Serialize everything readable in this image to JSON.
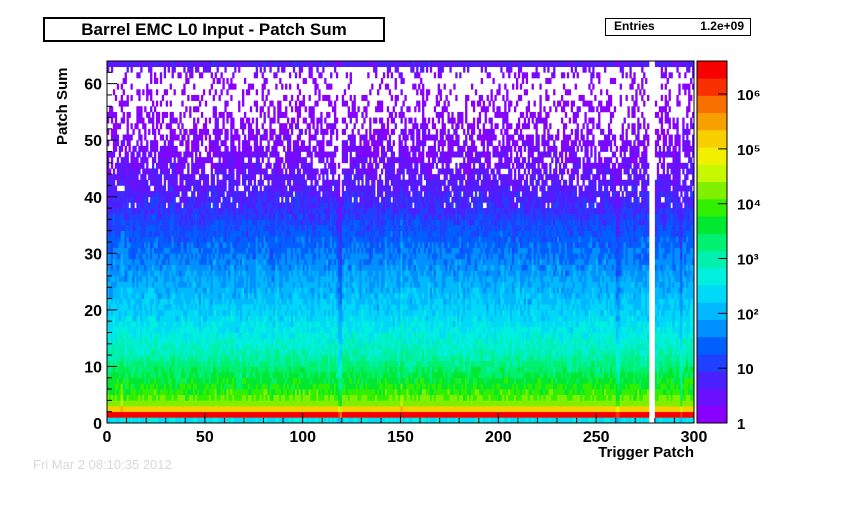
{
  "title": "Barrel EMC L0 Input - Patch Sum",
  "stats": {
    "label": "Entries",
    "value": "1.2e+09"
  },
  "footer_text": "Fri Mar  2 08:10:35 2012",
  "chart_data": {
    "type": "heatmap",
    "title": "Barrel EMC L0 Input - Patch Sum",
    "xlabel": "Trigger Patch",
    "ylabel": "Patch Sum",
    "xlim": [
      0,
      300
    ],
    "ylim": [
      0,
      64
    ],
    "x_ticks": [
      0,
      50,
      100,
      150,
      200,
      250,
      300
    ],
    "y_ticks": [
      0,
      10,
      20,
      30,
      40,
      50,
      60
    ],
    "z_scale": "log",
    "zlim": [
      1,
      4000000
    ],
    "colorbar_ticks": [
      {
        "value": 1,
        "label": "1"
      },
      {
        "value": 10,
        "label": "10"
      },
      {
        "value": 100,
        "label": "10²"
      },
      {
        "value": 1000,
        "label": "10³"
      },
      {
        "value": 10000,
        "label": "10⁴"
      },
      {
        "value": 100000,
        "label": "10⁵"
      },
      {
        "value": 1000000,
        "label": "10⁶"
      }
    ],
    "palette": [
      "#8a00ff",
      "#6a10ff",
      "#4a20ff",
      "#2040ff",
      "#0060ff",
      "#0090ff",
      "#00b8ff",
      "#00d8f8",
      "#00f0e0",
      "#00f0b0",
      "#00f070",
      "#00e830",
      "#30f000",
      "#80f000",
      "#c8f800",
      "#f0f000",
      "#f8d000",
      "#f8a000",
      "#f87000",
      "#f83000",
      "#f80000"
    ],
    "profile_by_patch_sum": [
      {
        "y": 0,
        "count": 300
      },
      {
        "y": 1,
        "count": 3000000
      },
      {
        "y": 2,
        "count": 150000
      },
      {
        "y": 3,
        "count": 20000
      },
      {
        "y": 5,
        "count": 8000
      },
      {
        "y": 8,
        "count": 3000
      },
      {
        "y": 12,
        "count": 900
      },
      {
        "y": 18,
        "count": 250
      },
      {
        "y": 25,
        "count": 80
      },
      {
        "y": 32,
        "count": 25
      },
      {
        "y": 38,
        "count": 8
      },
      {
        "y": 45,
        "count": 3
      },
      {
        "y": 52,
        "count": 1.5
      },
      {
        "y": 60,
        "count": 1
      },
      {
        "y": 63,
        "count": 5
      }
    ],
    "empty_patches": [
      277,
      278,
      279
    ],
    "low_patches": [
      118,
      119,
      260,
      261,
      293
    ],
    "hot_patches": [
      7,
      150
    ]
  }
}
